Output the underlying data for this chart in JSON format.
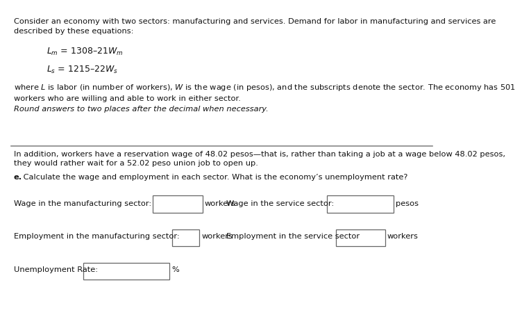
{
  "bg_color": "#ffffff",
  "text_color": "#1a1a1a",
  "dark_text": "#111111",
  "para1": "Consider an economy with two sectors: manufacturing and services. Demand for labor in manufacturing and services are\ndescribed by these equations:",
  "eq1": "$\\mathit{L}_{\\mathit{m}}$ = 1308–21$\\mathit{W}_{\\mathit{m}}$",
  "eq2": "$\\mathit{L}_{\\mathit{s}}$ = 1215–22$\\mathit{W}_{\\mathit{s}}$",
  "para2": "where $\\mathit{L}$ is labor (in number of workers), $\\mathit{W}$ is the wage (in pesos), and the subscripts denote the sector. The economy has 501\nworkers who are willing and able to work in either sector.",
  "para3": "Round answers to two places after the decimal when necessary.",
  "para4": "In addition, workers have a reservation wage of 48.02 pesos—that is, rather than taking a job at a wage below 48.02 pesos,\nthey would rather wait for a 52.02 peso union job to open up.",
  "para5_bold": "e.",
  "para5_rest": " Calculate the wage and employment in each sector. What is the economy’s unemployment rate?",
  "label_wage_mfg": "Wage in the manufacturing sector:",
  "label_after_box1": "workers",
  "label_wage_svc": "Wage in the service sector:",
  "label_after_box2": "pesos",
  "label_emp_mfg": "Employment in the manufacturing sector:",
  "label_after_box3": "workers",
  "label_emp_svc": "Employment in the service sector",
  "label_after_box4": "workers",
  "label_unemp": "Unemployment Rate:",
  "label_after_box5": "%",
  "divider_color": "#888888",
  "box_color": "#666666"
}
